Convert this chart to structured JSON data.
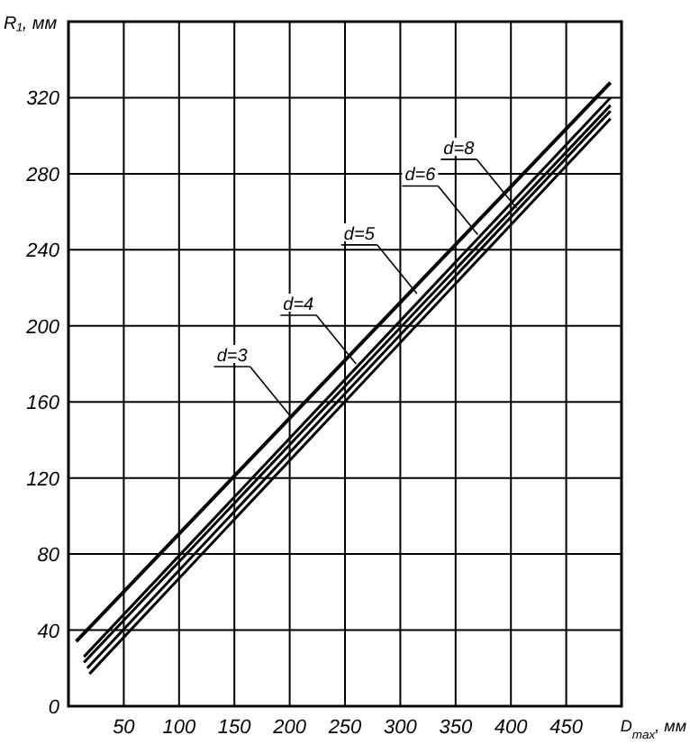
{
  "chart_data": {
    "type": "line",
    "xlabel": "D$_{max}$, мм",
    "ylabel": "R₁, мм",
    "xlim": [
      0,
      500
    ],
    "ylim": [
      0,
      360
    ],
    "xticks": [
      50,
      100,
      150,
      200,
      250,
      300,
      350,
      400,
      450
    ],
    "yticks": [
      {
        "value": 0,
        "label": "0"
      },
      40,
      80,
      120,
      160,
      200,
      240,
      280,
      320,
      {
        "value": 360,
        "label": null
      }
    ],
    "grid": true,
    "marker": "none",
    "line_style": "solid",
    "series": [
      {
        "color": "#000000",
        "x": [
          7,
          490
        ],
        "values": [
          34,
          328
        ]
      },
      {
        "color": "#000000",
        "x": [
          14,
          490
        ],
        "values": [
          26,
          320
        ]
      },
      {
        "color": "#000000",
        "x": [
          14,
          490
        ],
        "values": [
          23,
          316
        ]
      },
      {
        "color": "#000000",
        "x": [
          17,
          490
        ],
        "values": [
          20,
          313
        ]
      },
      {
        "color": "#000000",
        "x": [
          19,
          490
        ],
        "values": [
          17,
          309
        ]
      }
    ],
    "annotations": [
      {
        "text": "d=3",
        "x": 200,
        "y": 153
      },
      {
        "text": "d=4",
        "x": 260,
        "y": 180
      },
      {
        "text": "d=5",
        "x": 315,
        "y": 217
      },
      {
        "text": "d=6",
        "x": 370,
        "y": 248
      },
      {
        "text": "d=8",
        "x": 405,
        "y": 262
      }
    ]
  }
}
